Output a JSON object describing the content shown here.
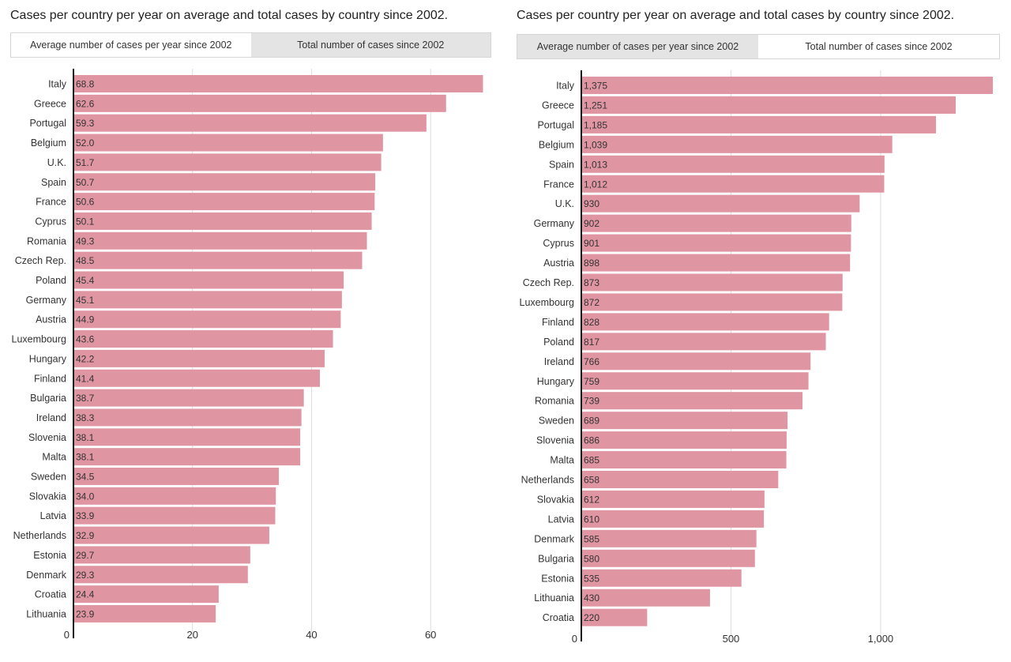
{
  "chart_data": [
    {
      "type": "bar",
      "orientation": "horizontal",
      "title": "Cases per country per year on average and total cases by country since 2002.",
      "tabs": [
        {
          "label": "Average number of cases per year since 2002",
          "active": true
        },
        {
          "label": "Total number of cases since 2002",
          "active": false
        }
      ],
      "categories": [
        "Italy",
        "Greece",
        "Portugal",
        "Belgium",
        "U.K.",
        "Spain",
        "France",
        "Cyprus",
        "Romania",
        "Czech Rep.",
        "Poland",
        "Germany",
        "Austria",
        "Luxembourg",
        "Hungary",
        "Finland",
        "Bulgaria",
        "Ireland",
        "Slovenia",
        "Malta",
        "Sweden",
        "Slovakia",
        "Latvia",
        "Netherlands",
        "Estonia",
        "Denmark",
        "Croatia",
        "Lithuania"
      ],
      "values": [
        68.8,
        62.6,
        59.3,
        52.0,
        51.7,
        50.7,
        50.6,
        50.1,
        49.3,
        48.5,
        45.4,
        45.1,
        44.9,
        43.6,
        42.2,
        41.4,
        38.7,
        38.3,
        38.1,
        38.1,
        34.5,
        34.0,
        33.9,
        32.9,
        29.7,
        29.3,
        24.4,
        23.9
      ],
      "value_labels": [
        "68.8",
        "62.6",
        "59.3",
        "52.0",
        "51.7",
        "50.7",
        "50.6",
        "50.1",
        "49.3",
        "48.5",
        "45.4",
        "45.1",
        "44.9",
        "43.6",
        "42.2",
        "41.4",
        "38.7",
        "38.3",
        "38.1",
        "38.1",
        "34.5",
        "34.0",
        "33.9",
        "32.9",
        "29.7",
        "29.3",
        "24.4",
        "23.9"
      ],
      "xlim": [
        0,
        69
      ],
      "xticks": [
        0,
        20,
        40,
        60
      ],
      "xtick_labels": [
        "0",
        "20",
        "40",
        "60"
      ],
      "grid": true,
      "bar_color": "#e096a2"
    },
    {
      "type": "bar",
      "orientation": "horizontal",
      "title": "Cases per country per year on average and total cases by country since 2002.",
      "tabs": [
        {
          "label": "Average number of cases per year since 2002",
          "active": false
        },
        {
          "label": "Total number of cases since 2002",
          "active": true
        }
      ],
      "categories": [
        "Italy",
        "Greece",
        "Portugal",
        "Belgium",
        "Spain",
        "France",
        "U.K.",
        "Germany",
        "Cyprus",
        "Austria",
        "Czech Rep.",
        "Luxembourg",
        "Finland",
        "Poland",
        "Ireland",
        "Hungary",
        "Romania",
        "Sweden",
        "Slovenia",
        "Malta",
        "Netherlands",
        "Slovakia",
        "Latvia",
        "Denmark",
        "Bulgaria",
        "Estonia",
        "Lithuania",
        "Croatia"
      ],
      "values": [
        1375,
        1251,
        1185,
        1039,
        1013,
        1012,
        930,
        902,
        901,
        898,
        873,
        872,
        828,
        817,
        766,
        759,
        739,
        689,
        686,
        685,
        658,
        612,
        610,
        585,
        580,
        535,
        430,
        220
      ],
      "value_labels": [
        "1,375",
        "1,251",
        "1,185",
        "1,039",
        "1,013",
        "1,012",
        "930",
        "902",
        "901",
        "898",
        "873",
        "872",
        "828",
        "817",
        "766",
        "759",
        "739",
        "689",
        "686",
        "685",
        "658",
        "612",
        "610",
        "585",
        "580",
        "535",
        "430",
        "220"
      ],
      "xlim": [
        0,
        1375
      ],
      "xticks": [
        0,
        500,
        1000
      ],
      "xtick_labels": [
        "0",
        "500",
        "1,000"
      ],
      "grid": true,
      "bar_color": "#e096a2"
    }
  ]
}
